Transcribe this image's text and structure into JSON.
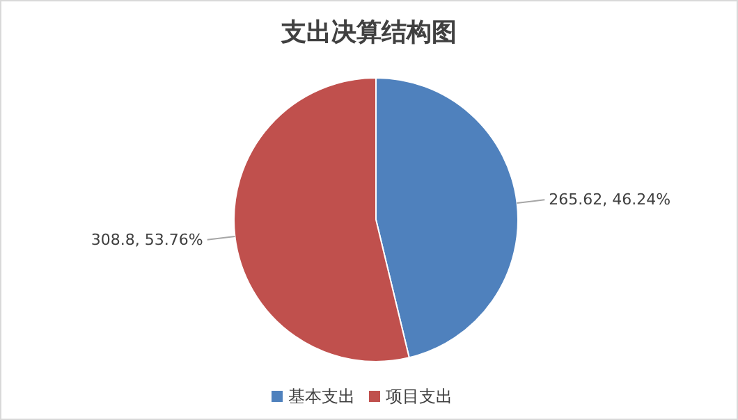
{
  "chart_data": {
    "type": "pie",
    "title": "支出决算结构图",
    "categories": [
      "基本支出",
      "项目支出"
    ],
    "values": [
      265.62,
      308.8
    ],
    "colors": [
      "#4f81bd",
      "#c0504d"
    ],
    "value_labels": [
      "265.62, 46.24%",
      "308.8, 53.76%"
    ],
    "legend": "bottom"
  }
}
